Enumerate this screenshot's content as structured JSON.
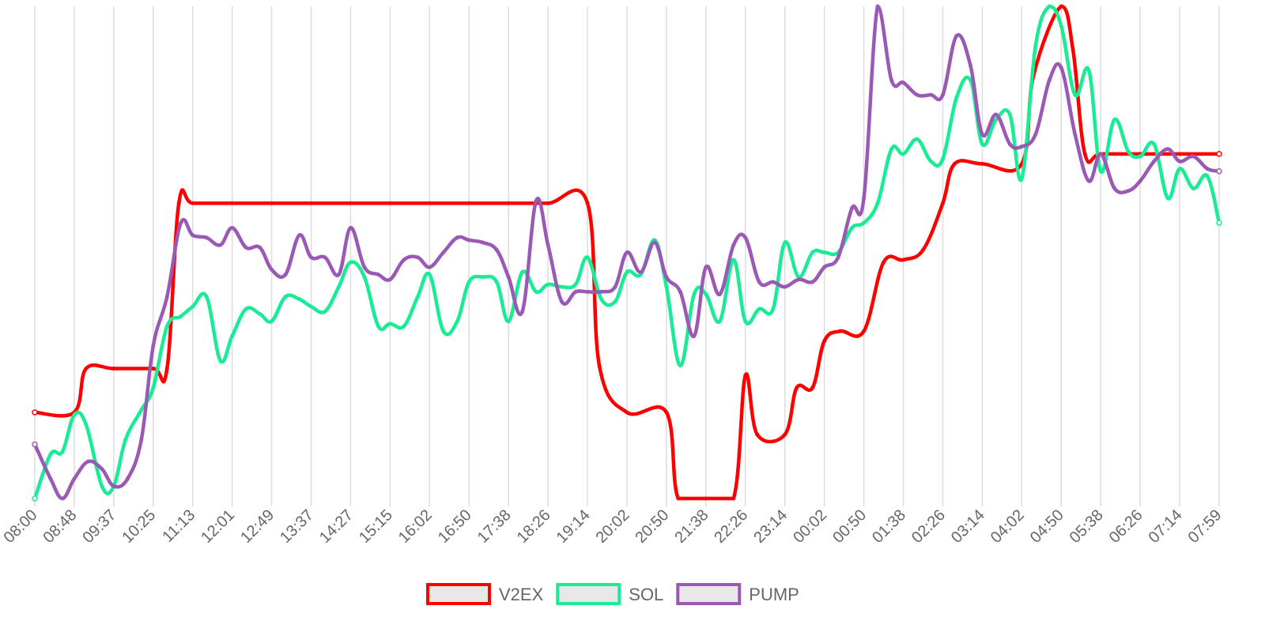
{
  "chart_data": {
    "type": "line",
    "x_ticks": [
      "08:00",
      "08:48",
      "09:37",
      "10:25",
      "11:13",
      "12:01",
      "12:49",
      "13:37",
      "14:27",
      "15:15",
      "16:02",
      "16:50",
      "17:38",
      "18:26",
      "19:14",
      "20:02",
      "20:50",
      "21:38",
      "22:26",
      "23:14",
      "00:02",
      "00:50",
      "01:38",
      "02:26",
      "03:14",
      "04:02",
      "04:50",
      "05:38",
      "06:26",
      "07:14",
      "07:59"
    ],
    "x_range": [
      0,
      30
    ],
    "y_range": [
      0,
      100
    ],
    "grid": {
      "vertical": true,
      "horizontal": false
    },
    "legend_position": "bottom",
    "series": [
      {
        "name": "V2EX",
        "color": "#ff0000",
        "points": [
          [
            0,
            17.5
          ],
          [
            1,
            17.5
          ],
          [
            1.3,
            26.4
          ],
          [
            2,
            26.4
          ],
          [
            3,
            26.4
          ],
          [
            3.35,
            26.4
          ],
          [
            3.65,
            60
          ],
          [
            4,
            60
          ],
          [
            5,
            60
          ],
          [
            6,
            60
          ],
          [
            7,
            60
          ],
          [
            8,
            60
          ],
          [
            9,
            60
          ],
          [
            10,
            60
          ],
          [
            11,
            60
          ],
          [
            12,
            60
          ],
          [
            13,
            60
          ],
          [
            14,
            60
          ],
          [
            14.3,
            27
          ],
          [
            15,
            17.5
          ],
          [
            16,
            17.5
          ],
          [
            16.3,
            0
          ],
          [
            17,
            0
          ],
          [
            17.7,
            0
          ],
          [
            18,
            25
          ],
          [
            18.3,
            13
          ],
          [
            19,
            13
          ],
          [
            19.3,
            22.5
          ],
          [
            19.7,
            22.5
          ],
          [
            20,
            32
          ],
          [
            20.4,
            34
          ],
          [
            21,
            34
          ],
          [
            21.5,
            48
          ],
          [
            22,
            48.5
          ],
          [
            22.5,
            50.5
          ],
          [
            23,
            60
          ],
          [
            23.3,
            68
          ],
          [
            24,
            68
          ],
          [
            25,
            68
          ],
          [
            25.3,
            86
          ],
          [
            26,
            100
          ],
          [
            26.3,
            91
          ],
          [
            26.6,
            70
          ],
          [
            27,
            70
          ],
          [
            28,
            70
          ],
          [
            29,
            70
          ],
          [
            30,
            70
          ]
        ]
      },
      {
        "name": "SOL",
        "color": "#19ec95",
        "points": [
          [
            0,
            0
          ],
          [
            0.4,
            9
          ],
          [
            0.7,
            9.5
          ],
          [
            1,
            17
          ],
          [
            1.3,
            15
          ],
          [
            1.7,
            2.5
          ],
          [
            2,
            2.5
          ],
          [
            2.3,
            12
          ],
          [
            2.7,
            18
          ],
          [
            3,
            22.5
          ],
          [
            3.35,
            35
          ],
          [
            3.7,
            37
          ],
          [
            4,
            39
          ],
          [
            4.35,
            41
          ],
          [
            4.7,
            28
          ],
          [
            5,
            33
          ],
          [
            5.35,
            38.5
          ],
          [
            5.7,
            37.5
          ],
          [
            6,
            36
          ],
          [
            6.35,
            41
          ],
          [
            6.7,
            40.5
          ],
          [
            7,
            39
          ],
          [
            7.35,
            38
          ],
          [
            7.7,
            43
          ],
          [
            8,
            48
          ],
          [
            8.35,
            45
          ],
          [
            8.7,
            35
          ],
          [
            9,
            35.5
          ],
          [
            9.35,
            35
          ],
          [
            9.7,
            41
          ],
          [
            10,
            45.5
          ],
          [
            10.35,
            34
          ],
          [
            10.7,
            36
          ],
          [
            11,
            44
          ],
          [
            11.35,
            45
          ],
          [
            11.7,
            44
          ],
          [
            12,
            36
          ],
          [
            12.35,
            46
          ],
          [
            12.7,
            42
          ],
          [
            13,
            43.5
          ],
          [
            13.35,
            43
          ],
          [
            13.7,
            43.5
          ],
          [
            14,
            49
          ],
          [
            14.35,
            40.5
          ],
          [
            14.7,
            40
          ],
          [
            15,
            46
          ],
          [
            15.35,
            45.5
          ],
          [
            15.7,
            52.5
          ],
          [
            16,
            43
          ],
          [
            16.35,
            27
          ],
          [
            16.7,
            41.5
          ],
          [
            17,
            41.5
          ],
          [
            17.35,
            36
          ],
          [
            17.7,
            48.5
          ],
          [
            18,
            36
          ],
          [
            18.35,
            38.5
          ],
          [
            18.7,
            38.5
          ],
          [
            19,
            52
          ],
          [
            19.35,
            45
          ],
          [
            19.7,
            50
          ],
          [
            20,
            50
          ],
          [
            20.35,
            50
          ],
          [
            20.7,
            55
          ],
          [
            21,
            56
          ],
          [
            21.35,
            60
          ],
          [
            21.7,
            71
          ],
          [
            22,
            70
          ],
          [
            22.35,
            73
          ],
          [
            22.7,
            68.5
          ],
          [
            23,
            69
          ],
          [
            23.35,
            81.5
          ],
          [
            23.7,
            85
          ],
          [
            24,
            72
          ],
          [
            24.35,
            77
          ],
          [
            24.7,
            78
          ],
          [
            25,
            65
          ],
          [
            25.35,
            92
          ],
          [
            25.7,
            100
          ],
          [
            26,
            96
          ],
          [
            26.35,
            82
          ],
          [
            26.7,
            87
          ],
          [
            27,
            66.5
          ],
          [
            27.35,
            77
          ],
          [
            27.7,
            70.5
          ],
          [
            28,
            69.5
          ],
          [
            28.35,
            72
          ],
          [
            28.7,
            61
          ],
          [
            29,
            67
          ],
          [
            29.35,
            63
          ],
          [
            29.7,
            65.5
          ],
          [
            30,
            56
          ]
        ]
      },
      {
        "name": "PUMP",
        "color": "#9b59b6",
        "points": [
          [
            0,
            11
          ],
          [
            0.4,
            4
          ],
          [
            0.7,
            0
          ],
          [
            1,
            4
          ],
          [
            1.35,
            7.5
          ],
          [
            1.7,
            6
          ],
          [
            2,
            2.5
          ],
          [
            2.35,
            4
          ],
          [
            2.7,
            12
          ],
          [
            3,
            31
          ],
          [
            3.35,
            41
          ],
          [
            3.7,
            56
          ],
          [
            4,
            53.5
          ],
          [
            4.35,
            53
          ],
          [
            4.7,
            51.5
          ],
          [
            5,
            55
          ],
          [
            5.35,
            51
          ],
          [
            5.7,
            51
          ],
          [
            6,
            46.5
          ],
          [
            6.35,
            45.5
          ],
          [
            6.7,
            53.5
          ],
          [
            7,
            49
          ],
          [
            7.35,
            49
          ],
          [
            7.7,
            45.5
          ],
          [
            8,
            55
          ],
          [
            8.35,
            47
          ],
          [
            8.7,
            45.5
          ],
          [
            9,
            44.5
          ],
          [
            9.35,
            48.5
          ],
          [
            9.7,
            49
          ],
          [
            10,
            47
          ],
          [
            10.35,
            50
          ],
          [
            10.7,
            53
          ],
          [
            11,
            52.5
          ],
          [
            11.35,
            52
          ],
          [
            11.7,
            50.5
          ],
          [
            12,
            45
          ],
          [
            12.35,
            38
          ],
          [
            12.7,
            60.5
          ],
          [
            13,
            51.5
          ],
          [
            13.35,
            40
          ],
          [
            13.7,
            42
          ],
          [
            14,
            42
          ],
          [
            14.35,
            42
          ],
          [
            14.7,
            43
          ],
          [
            15,
            50
          ],
          [
            15.35,
            46
          ],
          [
            15.7,
            52
          ],
          [
            16,
            45
          ],
          [
            16.35,
            42
          ],
          [
            16.7,
            33
          ],
          [
            17,
            47
          ],
          [
            17.35,
            41.5
          ],
          [
            17.7,
            51.5
          ],
          [
            18,
            53
          ],
          [
            18.35,
            44
          ],
          [
            18.7,
            44
          ],
          [
            19,
            43
          ],
          [
            19.35,
            44.5
          ],
          [
            19.7,
            44
          ],
          [
            20,
            47
          ],
          [
            20.35,
            49
          ],
          [
            20.7,
            59
          ],
          [
            21,
            61
          ],
          [
            21.35,
            100
          ],
          [
            21.7,
            85
          ],
          [
            22,
            84.5
          ],
          [
            22.35,
            82
          ],
          [
            22.7,
            82
          ],
          [
            23,
            82
          ],
          [
            23.35,
            94
          ],
          [
            23.7,
            88
          ],
          [
            24,
            74
          ],
          [
            24.35,
            78
          ],
          [
            24.7,
            72
          ],
          [
            25,
            71.5
          ],
          [
            25.35,
            74
          ],
          [
            25.7,
            85
          ],
          [
            26,
            87.5
          ],
          [
            26.35,
            74
          ],
          [
            26.7,
            64.5
          ],
          [
            27,
            70
          ],
          [
            27.35,
            63
          ],
          [
            27.7,
            62.5
          ],
          [
            28,
            64.5
          ],
          [
            28.35,
            68.5
          ],
          [
            28.7,
            71
          ],
          [
            29,
            68.5
          ],
          [
            29.35,
            69.5
          ],
          [
            29.7,
            67
          ],
          [
            30,
            66.5
          ]
        ]
      }
    ],
    "legend": [
      {
        "name": "V2EX",
        "color": "#ff0000"
      },
      {
        "name": "SOL",
        "color": "#19ec95"
      },
      {
        "name": "PUMP",
        "color": "#9b59b6"
      }
    ]
  }
}
